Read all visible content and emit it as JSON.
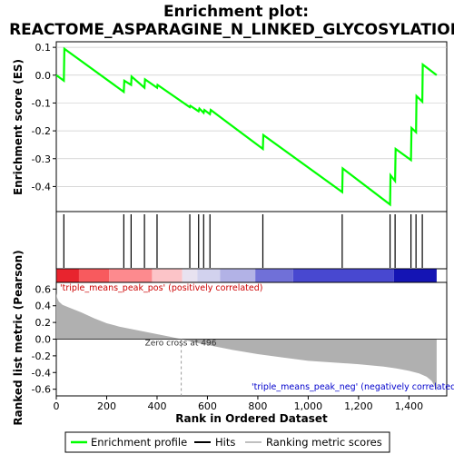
{
  "title_line1": "Enrichment plot:",
  "title_line2": "REACTOME_ASPARAGINE_N_LINKED_GLYCOSYLATION",
  "colors": {
    "profile": "#00ff00",
    "hits": "#000000",
    "metric_fill": "#b0b0b0",
    "axis": "#000000",
    "grid": "#cccccc"
  },
  "chart_data": [
    {
      "type": "line",
      "name": "enrichment_profile",
      "ylabel": "Enrichment score (ES)",
      "xlim": [
        0,
        1550
      ],
      "ylim": [
        -0.49,
        0.12
      ],
      "yticks": [
        0.1,
        0.0,
        -0.1,
        -0.2,
        -0.3,
        -0.4
      ],
      "ytick_labels": [
        "0.1",
        "0.0",
        "-0.1",
        "-0.2",
        "-0.3",
        "-0.4"
      ],
      "x": [
        0,
        30,
        32,
        268,
        270,
        297,
        299,
        350,
        352,
        400,
        402,
        530,
        532,
        565,
        568,
        585,
        588,
        610,
        613,
        820,
        822,
        1135,
        1137,
        1325,
        1327,
        1345,
        1347,
        1408,
        1410,
        1428,
        1430,
        1453,
        1455,
        1510
      ],
      "y": [
        0.0,
        -0.02,
        0.095,
        -0.06,
        -0.02,
        -0.035,
        -0.005,
        -0.045,
        -0.015,
        -0.045,
        -0.035,
        -0.115,
        -0.11,
        -0.13,
        -0.12,
        -0.135,
        -0.125,
        -0.14,
        -0.125,
        -0.265,
        -0.215,
        -0.42,
        -0.335,
        -0.465,
        -0.36,
        -0.38,
        -0.265,
        -0.305,
        -0.19,
        -0.205,
        -0.075,
        -0.095,
        0.038,
        0.0
      ]
    },
    {
      "type": "hits",
      "name": "hits",
      "x": [
        30,
        268,
        297,
        350,
        400,
        530,
        565,
        585,
        610,
        820,
        1135,
        1325,
        1345,
        1408,
        1428,
        1453
      ]
    },
    {
      "type": "heatmap",
      "name": "rank_colorbar",
      "segments": [
        {
          "from": 0,
          "to": 90,
          "color": "#e8242e"
        },
        {
          "from": 90,
          "to": 210,
          "color": "#f85a5e"
        },
        {
          "from": 210,
          "to": 380,
          "color": "#fd8a8e"
        },
        {
          "from": 380,
          "to": 500,
          "color": "#fcc4c8"
        },
        {
          "from": 500,
          "to": 560,
          "color": "#e8e2f0"
        },
        {
          "from": 560,
          "to": 650,
          "color": "#d2d2ee"
        },
        {
          "from": 650,
          "to": 790,
          "color": "#b2b2e6"
        },
        {
          "from": 790,
          "to": 940,
          "color": "#7070d8"
        },
        {
          "from": 940,
          "to": 1340,
          "color": "#4848d0"
        },
        {
          "from": 1340,
          "to": 1510,
          "color": "#1414b4"
        }
      ]
    },
    {
      "type": "area",
      "name": "ranking_metric",
      "xlabel": "Rank in Ordered Dataset",
      "ylabel": "Ranked list metric (Pearson)",
      "xlim": [
        0,
        1550
      ],
      "ylim": [
        -0.68,
        0.68
      ],
      "xticks": [
        0,
        200,
        400,
        600,
        800,
        1000,
        1200,
        1400
      ],
      "xtick_labels": [
        "0",
        "200",
        "400",
        "600",
        "800",
        "1,000",
        "1,200",
        "1,400"
      ],
      "yticks": [
        0.6,
        0.4,
        0.2,
        0.0,
        -0.2,
        -0.4,
        -0.6
      ],
      "ytick_labels": [
        "0.6",
        "0.4",
        "0.2",
        "0.0",
        "-0.2",
        "-0.4",
        "-0.6"
      ],
      "x": [
        0,
        3,
        10,
        25,
        50,
        100,
        150,
        200,
        250,
        300,
        350,
        400,
        450,
        496,
        550,
        600,
        700,
        800,
        900,
        1000,
        1100,
        1200,
        1300,
        1350,
        1400,
        1440,
        1470,
        1490,
        1500,
        1510
      ],
      "y": [
        0.55,
        0.5,
        0.45,
        0.41,
        0.38,
        0.32,
        0.25,
        0.19,
        0.15,
        0.12,
        0.09,
        0.06,
        0.03,
        0.0,
        -0.04,
        -0.07,
        -0.13,
        -0.18,
        -0.22,
        -0.26,
        -0.28,
        -0.3,
        -0.33,
        -0.35,
        -0.38,
        -0.41,
        -0.45,
        -0.5,
        -0.55,
        -0.62
      ],
      "zero_cross_label": "Zero cross at 496",
      "zero_cross_x": 496,
      "pos_label": "'triple_means_peak_pos' (positively correlated)",
      "neg_label": "'triple_means_peak_neg' (negatively correlated)"
    }
  ],
  "legend": [
    {
      "label": "Enrichment profile",
      "color": "#00ff00"
    },
    {
      "label": "Hits",
      "color": "#000000"
    },
    {
      "label": "Ranking metric scores",
      "color": "#c0c0c0"
    }
  ]
}
